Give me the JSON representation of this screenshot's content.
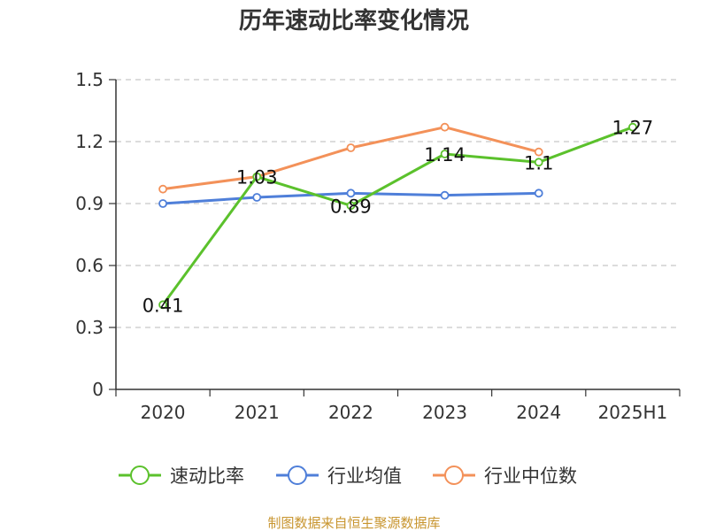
{
  "chart_data": {
    "type": "line",
    "title": "历年速动比率变化情况",
    "categories": [
      "2020",
      "2021",
      "2022",
      "2023",
      "2024",
      "2025H1"
    ],
    "ylim": [
      0,
      1.5
    ],
    "yticks": [
      "0",
      "0.3",
      "0.6",
      "0.9",
      "1.2",
      "1.5"
    ],
    "grid": true,
    "legend_position": "bottom",
    "series": [
      {
        "name": "速动比率",
        "color": "#5bc12c",
        "values": [
          0.41,
          1.03,
          0.89,
          1.14,
          1.1,
          1.27
        ],
        "labels": [
          "0.41",
          "1.03",
          "0.89",
          "1.14",
          "1.1",
          "1.27"
        ]
      },
      {
        "name": "行业均值",
        "color": "#4f7fd9",
        "values": [
          0.9,
          0.93,
          0.95,
          0.94,
          0.95,
          null
        ]
      },
      {
        "name": "行业中位数",
        "color": "#f39159",
        "values": [
          0.97,
          1.03,
          1.17,
          1.27,
          1.15,
          null
        ]
      }
    ],
    "source": "制图数据来自恒生聚源数据库"
  }
}
